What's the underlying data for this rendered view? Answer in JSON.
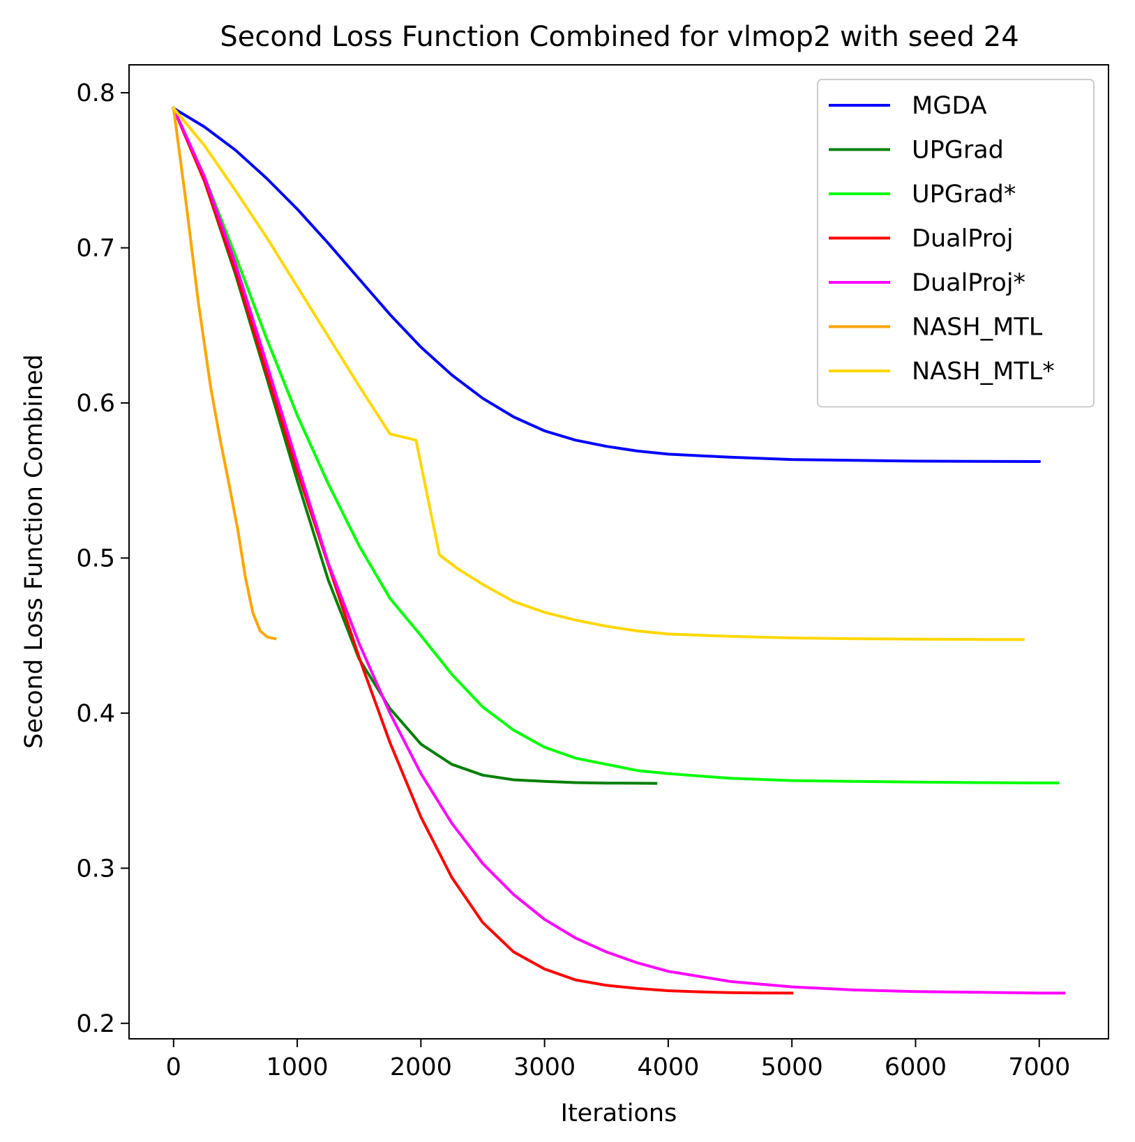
{
  "chart_data": {
    "type": "line",
    "title": "Second Loss Function Combined for vlmop2 with seed 24",
    "xlabel": "Iterations",
    "ylabel": "Second Loss Function Combined",
    "xlim": [
      -360,
      7560
    ],
    "ylim": [
      0.19,
      0.818
    ],
    "xticks": [
      0,
      1000,
      2000,
      3000,
      4000,
      5000,
      6000,
      7000
    ],
    "xtick_labels": [
      "0",
      "1000",
      "2000",
      "3000",
      "4000",
      "5000",
      "6000",
      "7000"
    ],
    "yticks": [
      0.2,
      0.3,
      0.4,
      0.5,
      0.6,
      0.7,
      0.8
    ],
    "ytick_labels": [
      "0.2",
      "0.3",
      "0.4",
      "0.5",
      "0.6",
      "0.7",
      "0.8"
    ],
    "grid": false,
    "legend_position": "top-right",
    "series": [
      {
        "name": "MGDA",
        "color": "#0000ff",
        "x": [
          0,
          250,
          500,
          750,
          1000,
          1250,
          1500,
          1750,
          2000,
          2250,
          2500,
          2750,
          3000,
          3250,
          3500,
          3750,
          4000,
          4500,
          5000,
          5500,
          6000,
          6500,
          7000
        ],
        "y": [
          0.79,
          0.778,
          0.763,
          0.745,
          0.725,
          0.703,
          0.68,
          0.657,
          0.636,
          0.618,
          0.603,
          0.591,
          0.582,
          0.576,
          0.572,
          0.569,
          0.567,
          0.565,
          0.5635,
          0.563,
          0.5625,
          0.5623,
          0.5622
        ]
      },
      {
        "name": "UPGrad",
        "color": "#008000",
        "x": [
          0,
          250,
          500,
          750,
          1000,
          1250,
          1500,
          1750,
          2000,
          2250,
          2500,
          2750,
          3000,
          3250,
          3500,
          3750,
          3900
        ],
        "y": [
          0.79,
          0.743,
          0.683,
          0.617,
          0.55,
          0.486,
          0.435,
          0.403,
          0.38,
          0.367,
          0.36,
          0.357,
          0.356,
          0.3552,
          0.3549,
          0.3548,
          0.3547
        ]
      },
      {
        "name": "UPGrad*",
        "color": "#00ff00",
        "x": [
          0,
          250,
          500,
          750,
          1000,
          1250,
          1500,
          1750,
          2000,
          2250,
          2500,
          2750,
          3000,
          3250,
          3500,
          3750,
          4000,
          4500,
          5000,
          5500,
          6000,
          6500,
          7000,
          7150
        ],
        "y": [
          0.79,
          0.746,
          0.695,
          0.642,
          0.592,
          0.548,
          0.508,
          0.474,
          0.45,
          0.425,
          0.404,
          0.389,
          0.378,
          0.371,
          0.367,
          0.363,
          0.361,
          0.358,
          0.3565,
          0.356,
          0.3555,
          0.3552,
          0.355,
          0.355
        ]
      },
      {
        "name": "DualProj",
        "color": "#ff0000",
        "x": [
          0,
          250,
          500,
          750,
          1000,
          1250,
          1500,
          1750,
          2000,
          2250,
          2500,
          2750,
          3000,
          3250,
          3500,
          3750,
          4000,
          4250,
          4500,
          4750,
          5000
        ],
        "y": [
          0.79,
          0.743,
          0.685,
          0.62,
          0.556,
          0.496,
          0.436,
          0.381,
          0.333,
          0.294,
          0.265,
          0.246,
          0.235,
          0.228,
          0.2245,
          0.2225,
          0.221,
          0.2203,
          0.2198,
          0.2196,
          0.2195
        ]
      },
      {
        "name": "DualProj*",
        "color": "#ff00ff",
        "x": [
          0,
          250,
          500,
          750,
          1000,
          1250,
          1500,
          1750,
          2000,
          2250,
          2500,
          2750,
          3000,
          3250,
          3500,
          3750,
          4000,
          4500,
          5000,
          5500,
          6000,
          6500,
          7000,
          7200
        ],
        "y": [
          0.79,
          0.746,
          0.69,
          0.626,
          0.561,
          0.497,
          0.445,
          0.4,
          0.361,
          0.329,
          0.303,
          0.283,
          0.267,
          0.255,
          0.246,
          0.239,
          0.2335,
          0.227,
          0.2235,
          0.2215,
          0.2205,
          0.22,
          0.2195,
          0.2195
        ]
      },
      {
        "name": "NASH_MTL",
        "color": "#ffa500",
        "x": [
          0,
          100,
          200,
          300,
          380,
          450,
          520,
          580,
          640,
          700,
          760,
          820
        ],
        "y": [
          0.79,
          0.73,
          0.665,
          0.61,
          0.575,
          0.547,
          0.518,
          0.488,
          0.465,
          0.453,
          0.449,
          0.448
        ]
      },
      {
        "name": "NASH_MTL*",
        "color": "#ffd700",
        "x": [
          0,
          250,
          500,
          750,
          1000,
          1250,
          1500,
          1750,
          1960,
          2150,
          2300,
          2500,
          2750,
          3000,
          3250,
          3500,
          3750,
          4000,
          4500,
          5000,
          5500,
          6000,
          6500,
          6870
        ],
        "y": [
          0.79,
          0.766,
          0.737,
          0.707,
          0.675,
          0.643,
          0.611,
          0.58,
          0.576,
          0.502,
          0.493,
          0.483,
          0.472,
          0.465,
          0.46,
          0.456,
          0.453,
          0.451,
          0.4495,
          0.4485,
          0.448,
          0.4477,
          0.4475,
          0.4474
        ]
      }
    ]
  }
}
